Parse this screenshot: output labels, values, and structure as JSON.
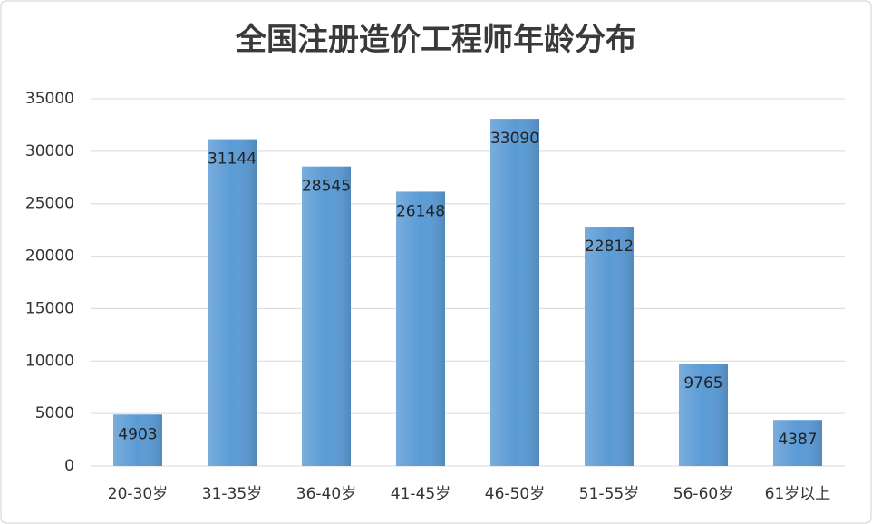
{
  "chart_data": {
    "type": "bar",
    "title": "全国注册造价工程师年龄分布",
    "categories": [
      "20-30岁",
      "31-35岁",
      "36-40岁",
      "41-45岁",
      "46-50岁",
      "51-55岁",
      "56-60岁",
      "61岁以上"
    ],
    "values": [
      4903,
      31144,
      28545,
      26148,
      33090,
      22812,
      9765,
      4387
    ],
    "color": "#5b9bd5",
    "ylim": [
      0,
      35000
    ],
    "yticks": [
      0,
      5000,
      10000,
      15000,
      20000,
      25000,
      30000,
      35000
    ],
    "grid": true
  }
}
